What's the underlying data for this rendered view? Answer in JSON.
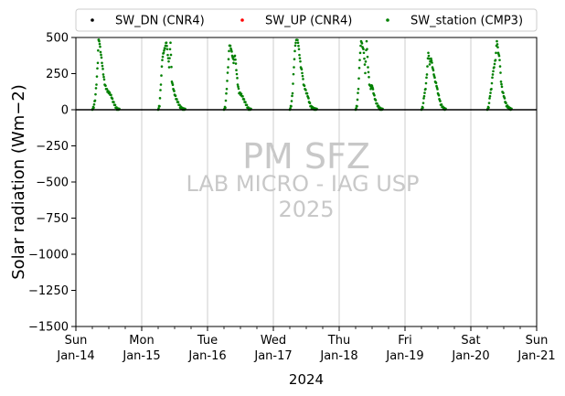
{
  "chart_data": {
    "type": "scatter",
    "xlabel": "2024",
    "ylabel": "Solar radiation (Wm−2)",
    "ylim": [
      -1500,
      500
    ],
    "yticks": [
      500,
      250,
      0,
      -250,
      -500,
      -750,
      -1000,
      -1250,
      -1500
    ],
    "xlim": [
      "2024-01-14",
      "2024-01-21"
    ],
    "x_ticks": [
      {
        "date": "2024-01-14",
        "day": "Sun",
        "label": "Jan-14"
      },
      {
        "date": "2024-01-15",
        "day": "Mon",
        "label": "Jan-15"
      },
      {
        "date": "2024-01-16",
        "day": "Tue",
        "label": "Jan-16"
      },
      {
        "date": "2024-01-17",
        "day": "Wed",
        "label": "Jan-17"
      },
      {
        "date": "2024-01-18",
        "day": "Thu",
        "label": "Jan-18"
      },
      {
        "date": "2024-01-19",
        "day": "Fri",
        "label": "Jan-19"
      },
      {
        "date": "2024-01-20",
        "day": "Sat",
        "label": "Jan-20"
      },
      {
        "date": "2024-01-21",
        "day": "Sun",
        "label": "Jan-21"
      }
    ],
    "grid": "vertical, daily",
    "legend_position": "top, above plot",
    "series": [
      {
        "name": "SW_DN (CNR4)",
        "color": "#000000",
        "marker": "dot",
        "days": [],
        "note_values": "0 at night; no daytime data visible"
      },
      {
        "name": "SW_UP (CNR4)",
        "color": "#ff0000",
        "marker": "dot",
        "days": []
      },
      {
        "name": "SW_station (CMP3)",
        "color": "#008000",
        "marker": "dot",
        "days": [
          {
            "date": "2024-01-14",
            "points": [
              [
                "06:00",
                0
              ],
              [
                "06:30",
                20
              ],
              [
                "07:00",
                70
              ],
              [
                "07:30",
                180
              ],
              [
                "08:00",
                330
              ],
              [
                "08:15",
                490
              ],
              [
                "08:30",
                480
              ],
              [
                "09:30",
                330
              ],
              [
                "10:00",
                250
              ],
              [
                "10:30",
                180
              ],
              [
                "11:00",
                150
              ],
              [
                "11:30",
                130
              ],
              [
                "12:00",
                120
              ],
              [
                "12:30",
                110
              ],
              [
                "13:00",
                90
              ],
              [
                "13:30",
                60
              ],
              [
                "14:00",
                40
              ],
              [
                "14:30",
                20
              ],
              [
                "15:00",
                5
              ],
              [
                "16:00",
                0
              ]
            ]
          },
          {
            "date": "2024-01-15",
            "points": [
              [
                "06:00",
                0
              ],
              [
                "06:30",
                30
              ],
              [
                "07:00",
                180
              ],
              [
                "07:30",
                350
              ],
              [
                "08:00",
                400
              ],
              [
                "08:30",
                430
              ],
              [
                "09:00",
                470
              ],
              [
                "10:00",
                300
              ],
              [
                "10:30",
                470
              ],
              [
                "11:00",
                200
              ],
              [
                "11:30",
                150
              ],
              [
                "12:00",
                110
              ],
              [
                "12:30",
                80
              ],
              [
                "13:00",
                60
              ],
              [
                "13:30",
                40
              ],
              [
                "14:00",
                20
              ],
              [
                "15:00",
                5
              ],
              [
                "16:00",
                0
              ]
            ]
          },
          {
            "date": "2024-01-16",
            "points": [
              [
                "06:00",
                0
              ],
              [
                "06:30",
                20
              ],
              [
                "07:00",
                150
              ],
              [
                "07:30",
                300
              ],
              [
                "08:00",
                450
              ],
              [
                "08:30",
                430
              ],
              [
                "09:30",
                330
              ],
              [
                "10:00",
                380
              ],
              [
                "10:30",
                280
              ],
              [
                "11:00",
                180
              ],
              [
                "11:30",
                120
              ],
              [
                "12:00",
                110
              ],
              [
                "12:30",
                100
              ],
              [
                "13:00",
                80
              ],
              [
                "13:30",
                60
              ],
              [
                "14:00",
                40
              ],
              [
                "14:30",
                20
              ],
              [
                "15:00",
                5
              ],
              [
                "16:00",
                0
              ]
            ]
          },
          {
            "date": "2024-01-17",
            "points": [
              [
                "06:00",
                0
              ],
              [
                "06:30",
                30
              ],
              [
                "07:00",
                120
              ],
              [
                "07:30",
                300
              ],
              [
                "08:00",
                450
              ],
              [
                "08:30",
                490
              ],
              [
                "09:00",
                470
              ],
              [
                "10:00",
                300
              ],
              [
                "10:30",
                260
              ],
              [
                "11:00",
                180
              ],
              [
                "11:30",
                150
              ],
              [
                "12:00",
                120
              ],
              [
                "12:30",
                100
              ],
              [
                "13:00",
                60
              ],
              [
                "13:30",
                30
              ],
              [
                "14:00",
                15
              ],
              [
                "15:00",
                5
              ],
              [
                "16:00",
                0
              ]
            ]
          },
          {
            "date": "2024-01-18",
            "points": [
              [
                "06:00",
                0
              ],
              [
                "06:30",
                30
              ],
              [
                "07:00",
                150
              ],
              [
                "07:30",
                350
              ],
              [
                "08:00",
                480
              ],
              [
                "09:00",
                400
              ],
              [
                "09:30",
                260
              ],
              [
                "10:00",
                480
              ],
              [
                "10:30",
                300
              ],
              [
                "11:00",
                180
              ],
              [
                "11:30",
                150
              ],
              [
                "12:00",
                170
              ],
              [
                "12:30",
                120
              ],
              [
                "13:00",
                80
              ],
              [
                "13:30",
                50
              ],
              [
                "14:00",
                30
              ],
              [
                "15:00",
                5
              ],
              [
                "16:00",
                0
              ]
            ]
          },
          {
            "date": "2024-01-19",
            "points": [
              [
                "06:00",
                0
              ],
              [
                "06:30",
                20
              ],
              [
                "07:00",
                100
              ],
              [
                "07:30",
                150
              ],
              [
                "08:00",
                250
              ],
              [
                "08:30",
                400
              ],
              [
                "09:00",
                320
              ],
              [
                "09:30",
                360
              ],
              [
                "10:00",
                300
              ],
              [
                "10:30",
                250
              ],
              [
                "11:00",
                200
              ],
              [
                "11:30",
                170
              ],
              [
                "12:00",
                120
              ],
              [
                "12:30",
                80
              ],
              [
                "13:00",
                40
              ],
              [
                "14:00",
                10
              ],
              [
                "15:00",
                0
              ]
            ]
          },
          {
            "date": "2024-01-20",
            "points": [
              [
                "06:00",
                0
              ],
              [
                "06:30",
                20
              ],
              [
                "07:00",
                100
              ],
              [
                "07:30",
                150
              ],
              [
                "08:00",
                250
              ],
              [
                "08:30",
                300
              ],
              [
                "09:00",
                350
              ],
              [
                "09:30",
                480
              ],
              [
                "10:00",
                400
              ],
              [
                "10:30",
                350
              ],
              [
                "11:00",
                200
              ],
              [
                "11:30",
                130
              ],
              [
                "12:00",
                100
              ],
              [
                "12:30",
                60
              ],
              [
                "13:00",
                30
              ],
              [
                "14:00",
                10
              ],
              [
                "15:00",
                0
              ]
            ]
          }
        ]
      }
    ]
  },
  "watermark": {
    "line1": "PM SFZ",
    "line2": "LAB MICRO - IAG USP",
    "line3": "2025"
  }
}
